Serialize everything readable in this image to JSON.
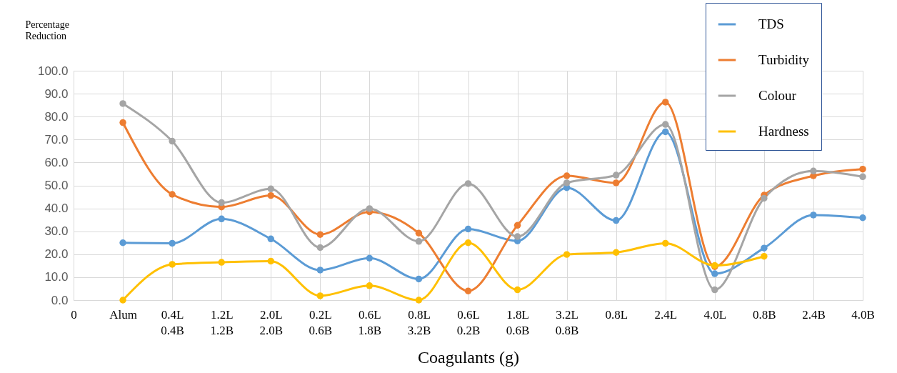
{
  "chart_data": {
    "type": "line",
    "xlabel": "Coagulants (g)",
    "ylabel": "Percentage Reduction",
    "categories": [
      "0",
      "Alum",
      "0.4L 0.4B",
      "1.2L 1.2B",
      "2.0L 2.0B",
      "0.2L 0.6B",
      "0.6L 1.8B",
      "0.8L 3.2B",
      "0.6L 0.2B",
      "1.8L 0.6B",
      "3.2L 0.8B",
      "0.8L",
      "2.4L",
      "4.0L",
      "0.8B",
      "2.4B",
      "4.0B"
    ],
    "series": [
      {
        "name": "TDS",
        "color": "#5b9bd5",
        "values": [
          null,
          25.0,
          24.8,
          35.4,
          26.7,
          13.1,
          18.3,
          9.2,
          31.0,
          25.8,
          49.0,
          34.7,
          73.4,
          11.5,
          22.7,
          37.1,
          35.9
        ]
      },
      {
        "name": "Turbidity",
        "color": "#ed7d31",
        "values": [
          null,
          77.4,
          46.1,
          40.6,
          45.6,
          28.6,
          38.5,
          29.2,
          4.0,
          32.6,
          54.2,
          51.1,
          86.3,
          14.6,
          45.8,
          54.2,
          57.1
        ]
      },
      {
        "name": "Colour",
        "color": "#a5a5a5",
        "values": [
          null,
          85.7,
          69.3,
          42.5,
          48.5,
          22.9,
          39.9,
          25.6,
          50.8,
          27.7,
          51.1,
          54.5,
          76.6,
          4.5,
          44.4,
          56.3,
          53.8
        ]
      },
      {
        "name": "Hardness",
        "color": "#ffc000",
        "values": [
          null,
          0.0,
          15.6,
          16.5,
          17.0,
          1.9,
          6.3,
          0.0,
          25.0,
          4.5,
          19.9,
          20.8,
          24.8,
          15.1,
          19.1,
          null,
          null
        ]
      }
    ],
    "ylim": [
      0,
      100
    ],
    "yticks": [
      {
        "value": 0,
        "label": "0.0"
      },
      {
        "value": 10,
        "label": "10.0"
      },
      {
        "value": 20,
        "label": "20.0"
      },
      {
        "value": 30,
        "label": "30.0"
      },
      {
        "value": 40,
        "label": "40.0"
      },
      {
        "value": 50,
        "label": "50.0"
      },
      {
        "value": 60,
        "label": "60.0"
      },
      {
        "value": 70,
        "label": "70.0"
      },
      {
        "value": 80,
        "label": "80.0"
      },
      {
        "value": 90,
        "label": "90.0"
      },
      {
        "value": 100,
        "label": "100.0"
      }
    ],
    "grid": true,
    "legend": "top right",
    "marker": "circle",
    "line_style": "solid"
  }
}
